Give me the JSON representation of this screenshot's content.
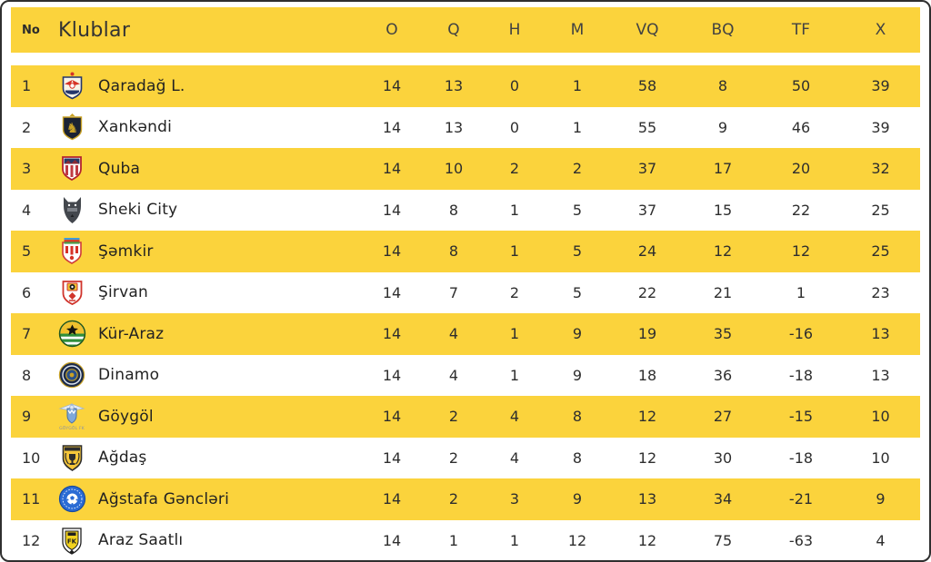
{
  "colors": {
    "row_highlight": "#FBD33C",
    "row_alt": "#FFFFFF",
    "text": "#2E2E2E",
    "card_border": "#2F2F2F"
  },
  "table": {
    "header": {
      "no": "No",
      "klublar": "Klublar",
      "o": "O",
      "q": "Q",
      "h": "H",
      "m": "M",
      "vq": "VQ",
      "bq": "BQ",
      "tf": "TF",
      "x": "X"
    },
    "rows": [
      {
        "rank": 1,
        "club": "Qaradağ L.",
        "logo": "qaradag-crest-icon",
        "o": 14,
        "q": 13,
        "h": 0,
        "m": 1,
        "vq": 58,
        "bq": 8,
        "tf": 50,
        "x": 39
      },
      {
        "rank": 2,
        "club": "Xankəndi",
        "logo": "xankendi-crest-icon",
        "o": 14,
        "q": 13,
        "h": 0,
        "m": 1,
        "vq": 55,
        "bq": 9,
        "tf": 46,
        "x": 39
      },
      {
        "rank": 3,
        "club": "Quba",
        "logo": "quba-crest-icon",
        "o": 14,
        "q": 10,
        "h": 2,
        "m": 2,
        "vq": 37,
        "bq": 17,
        "tf": 20,
        "x": 32
      },
      {
        "rank": 4,
        "club": "Sheki City",
        "logo": "sheki-wolf-icon",
        "o": 14,
        "q": 8,
        "h": 1,
        "m": 5,
        "vq": 37,
        "bq": 15,
        "tf": 22,
        "x": 25
      },
      {
        "rank": 5,
        "club": "Şəmkir",
        "logo": "semkir-crest-icon",
        "o": 14,
        "q": 8,
        "h": 1,
        "m": 5,
        "vq": 24,
        "bq": 12,
        "tf": 12,
        "x": 25
      },
      {
        "rank": 6,
        "club": "Şirvan",
        "logo": "sirvan-crest-icon",
        "o": 14,
        "q": 7,
        "h": 2,
        "m": 5,
        "vq": 22,
        "bq": 21,
        "tf": 1,
        "x": 23
      },
      {
        "rank": 7,
        "club": "Kür-Araz",
        "logo": "kuraraz-crest-icon",
        "o": 14,
        "q": 4,
        "h": 1,
        "m": 9,
        "vq": 19,
        "bq": 35,
        "tf": -16,
        "x": 13
      },
      {
        "rank": 8,
        "club": "Dinamo",
        "logo": "dinamo-crest-icon",
        "o": 14,
        "q": 4,
        "h": 1,
        "m": 9,
        "vq": 18,
        "bq": 36,
        "tf": -18,
        "x": 13
      },
      {
        "rank": 9,
        "club": "Göygöl",
        "logo": "goygol-crest-icon",
        "logo_caption": "GÖYGÖL FK",
        "o": 14,
        "q": 2,
        "h": 4,
        "m": 8,
        "vq": 12,
        "bq": 27,
        "tf": -15,
        "x": 10
      },
      {
        "rank": 10,
        "club": "Ağdaş",
        "logo": "agdas-crest-icon",
        "o": 14,
        "q": 2,
        "h": 4,
        "m": 8,
        "vq": 12,
        "bq": 30,
        "tf": -18,
        "x": 10
      },
      {
        "rank": 11,
        "club": "Ağstafa Gəncləri",
        "logo": "agstafa-crest-icon",
        "o": 14,
        "q": 2,
        "h": 3,
        "m": 9,
        "vq": 13,
        "bq": 34,
        "tf": -21,
        "x": 9
      },
      {
        "rank": 12,
        "club": "Araz Saatlı",
        "logo": "araz-crest-icon",
        "o": 14,
        "q": 1,
        "h": 1,
        "m": 12,
        "vq": 12,
        "bq": 75,
        "tf": -63,
        "x": 4
      }
    ]
  }
}
